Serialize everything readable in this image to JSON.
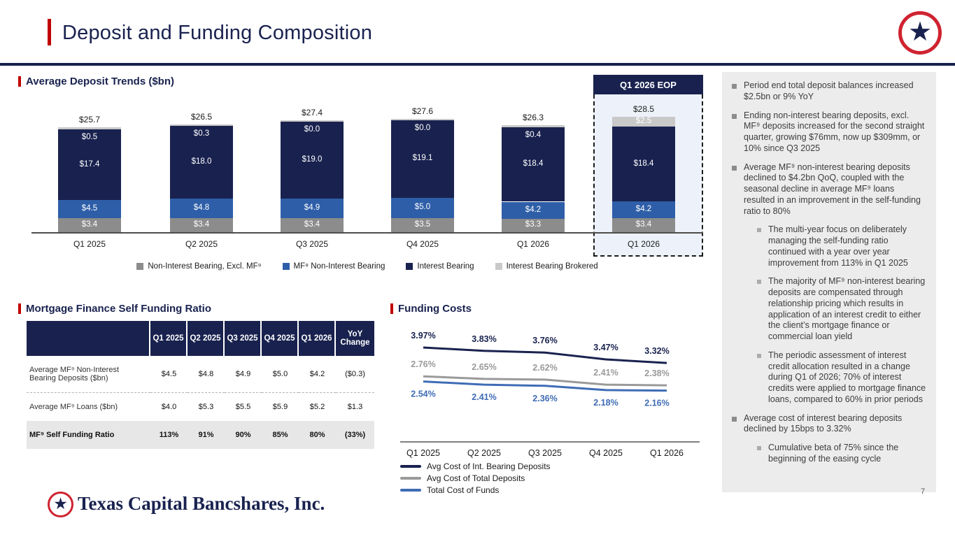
{
  "header": {
    "title": "Deposit and Funding Composition"
  },
  "colors": {
    "navy": "#19224f",
    "blue": "#2e5ea8",
    "gray": "#8c8c8c",
    "light_gray": "#c9c9c9",
    "accent_red": "#c00000",
    "logo_red": "#cf2330",
    "panel_blue": "#edf2fa",
    "sidebar_bg": "#ececec",
    "line_navy": "#19224f",
    "line_gray": "#9a9a9a",
    "line_blue": "#3f6cb5"
  },
  "chart_data": [
    {
      "name": "average-deposit-trends",
      "type": "bar",
      "stacked": true,
      "title": "Average Deposit Trends ($bn)",
      "categories": [
        "Q1 2025",
        "Q2 2025",
        "Q3 2025",
        "Q4 2025",
        "Q1 2026",
        "Q1 2026"
      ],
      "highlight_label": "Q1 2026 EOP",
      "series": [
        {
          "name": "Non-Interest Bearing, Excl. MF⁹",
          "color": "#8c8c8c",
          "values": [
            3.4,
            3.4,
            3.4,
            3.5,
            3.3,
            3.4
          ]
        },
        {
          "name": "MF⁹ Non-Interest Bearing",
          "color": "#2e5ea8",
          "values": [
            4.5,
            4.8,
            4.9,
            5.0,
            4.2,
            4.2
          ]
        },
        {
          "name": "Interest Bearing",
          "color": "#19224f",
          "values": [
            17.4,
            18.0,
            19.0,
            19.1,
            18.4,
            18.4
          ]
        },
        {
          "name": "Interest Bearing Brokered",
          "color": "#c9c9c9",
          "values": [
            0.5,
            0.3,
            0.0,
            0.0,
            0.4,
            2.5
          ]
        }
      ],
      "totals": [
        25.7,
        26.5,
        27.4,
        27.6,
        26.3,
        28.5
      ],
      "value_prefix": "$",
      "legend_position": "bottom",
      "grid": false
    },
    {
      "name": "funding-costs",
      "type": "line",
      "title": "Funding Costs",
      "categories": [
        "Q1 2025",
        "Q2 2025",
        "Q3 2025",
        "Q4 2025",
        "Q1 2026"
      ],
      "series": [
        {
          "name": "Avg Cost of Int. Bearing Deposits",
          "color": "#19224f",
          "values": [
            3.97,
            3.83,
            3.76,
            3.47,
            3.32
          ],
          "label_side": "above"
        },
        {
          "name": "Avg Cost of Total Deposits",
          "color": "#9a9a9a",
          "values": [
            2.76,
            2.65,
            2.62,
            2.41,
            2.38
          ],
          "label_side": "above"
        },
        {
          "name": "Total Cost of Funds",
          "color": "#3f6cb5",
          "values": [
            2.54,
            2.41,
            2.36,
            2.18,
            2.16
          ],
          "label_side": "below"
        }
      ],
      "value_suffix": "%",
      "ylim": [
        0,
        4.6
      ],
      "grid": false,
      "legend_position": "bottom-left"
    }
  ],
  "table": {
    "title": "Mortgage Finance Self Funding Ratio",
    "columns": [
      "",
      "Q1 2025",
      "Q2 2025",
      "Q3 2025",
      "Q4 2025",
      "Q1 2026",
      "YoY Change"
    ],
    "rows": [
      {
        "label": "Average MF⁹ Non-Interest Bearing Deposits ($bn)",
        "values": [
          "$4.5",
          "$4.8",
          "$4.9",
          "$5.0",
          "$4.2",
          "($0.3)"
        ],
        "bold": false
      },
      {
        "label": "Average MF⁹ Loans ($bn)",
        "values": [
          "$4.0",
          "$5.3",
          "$5.5",
          "$5.9",
          "$5.2",
          "$1.3"
        ],
        "bold": false
      },
      {
        "label": "MF⁹ Self Funding Ratio",
        "values": [
          "113%",
          "91%",
          "90%",
          "85%",
          "80%",
          "(33%)"
        ],
        "bold": true
      }
    ]
  },
  "sidebar": {
    "bullets": [
      {
        "level": 1,
        "text": "Period end total deposit balances increased $2.5bn or 9% YoY"
      },
      {
        "level": 1,
        "text": "Ending non-interest bearing deposits, excl. MF⁹ deposits increased for the second straight quarter, growing $76mm, now up $309mm, or 10% since Q3 2025"
      },
      {
        "level": 1,
        "text": "Average MF⁹ non-interest bearing deposits declined to $4.2bn QoQ, coupled with the seasonal decline in average MF⁹ loans resulted in an improvement in the self-funding ratio to 80%"
      },
      {
        "level": 2,
        "text": "The multi-year focus on deliberately managing the self-funding ratio continued with a year over year improvement from 113% in Q1 2025"
      },
      {
        "level": 2,
        "text": "The majority of MF⁹ non-interest bearing deposits are compensated through relationship pricing which results in application of an interest credit to either the client’s mortgage finance or commercial loan yield"
      },
      {
        "level": 2,
        "text": "The periodic assessment of interest credit allocation resulted in a change during Q1 of 2026; 70% of interest credits were applied to mortgage finance loans, compared to 60% in prior periods"
      },
      {
        "level": 1,
        "text": "Average cost of interest bearing deposits declined by 15bps to 3.32%"
      },
      {
        "level": 2,
        "text": "Cumulative beta of 75% since the beginning of the easing cycle"
      }
    ]
  },
  "footer": {
    "logo_text": "Texas Capital Bancshares, Inc.",
    "page_number": "7"
  }
}
